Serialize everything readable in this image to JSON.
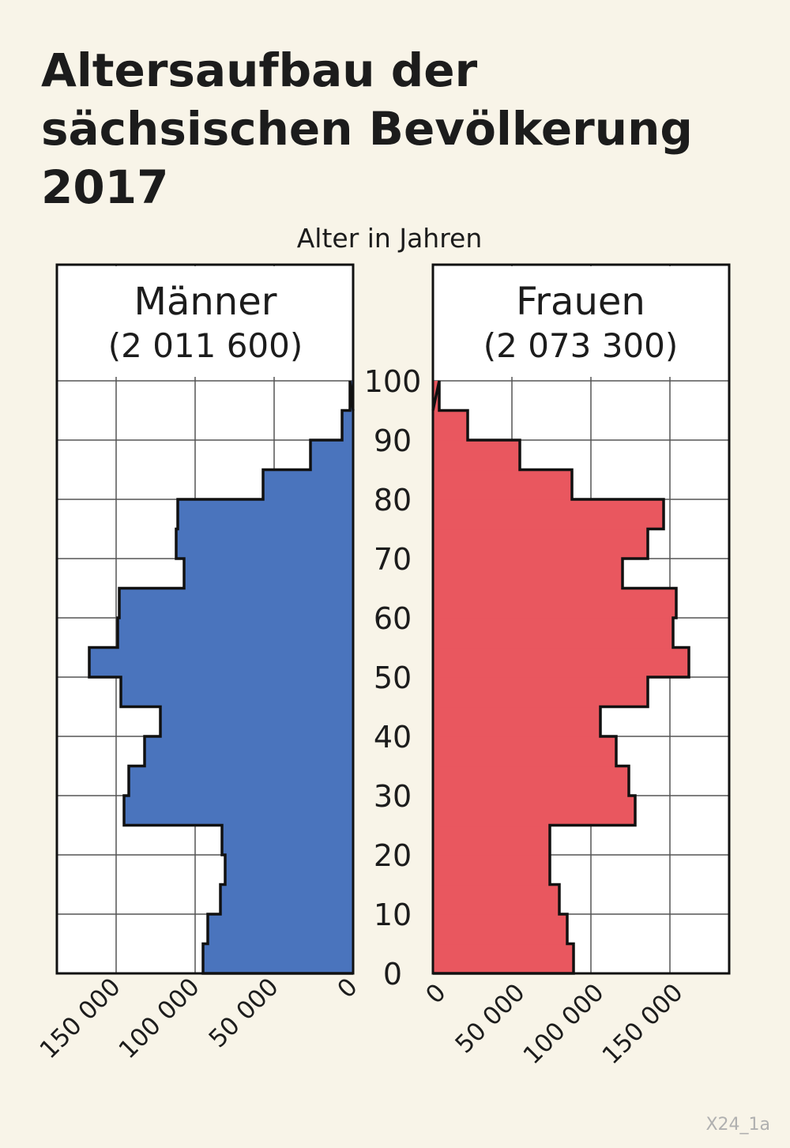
{
  "title_lines": [
    "Altersaufbau der",
    "sächsischen Bevölkerung",
    "2017"
  ],
  "figure_code": "X24_1a",
  "chart_data": {
    "type": "bar",
    "orientation": "horizontal",
    "layout": "population-pyramid",
    "y_axis_label": "Alter in Jahren",
    "y_range": [
      0,
      100
    ],
    "y_ticks": [
      0,
      10,
      20,
      30,
      40,
      50,
      60,
      70,
      80,
      90,
      100
    ],
    "x_range": [
      0,
      187500
    ],
    "x_ticks": [
      0,
      50000,
      100000,
      150000
    ],
    "x_tick_labels": [
      "0",
      "50 000",
      "100 000",
      "150 000"
    ],
    "age_groups": [
      "0-5",
      "5-10",
      "10-15",
      "15-20",
      "20-25",
      "25-30",
      "30-35",
      "35-40",
      "40-45",
      "45-50",
      "50-55",
      "55-60",
      "60-65",
      "65-70",
      "70-75",
      "75-80",
      "80-85",
      "85-90",
      "90-95",
      "95-100",
      "100+"
    ],
    "grid": true,
    "colors": {
      "men": "#4a74bd",
      "women": "#e9575f",
      "grid": "#555555",
      "outline": "#111111"
    },
    "series": [
      {
        "name": "Männer",
        "total_label": "(2 011 600)",
        "side": "left",
        "values": [
          95000,
          92000,
          84000,
          81000,
          83000,
          145000,
          142000,
          132000,
          122000,
          147000,
          167000,
          149000,
          148000,
          107000,
          112000,
          111000,
          57000,
          27000,
          7000,
          2000,
          0
        ]
      },
      {
        "name": "Frauen",
        "total_label": "(2 073 300)",
        "side": "right",
        "values": [
          89000,
          85000,
          80000,
          74000,
          74000,
          128000,
          124000,
          116000,
          106000,
          136000,
          162000,
          152000,
          154000,
          120000,
          136000,
          146000,
          88000,
          55000,
          22000,
          4000,
          0
        ]
      }
    ]
  }
}
